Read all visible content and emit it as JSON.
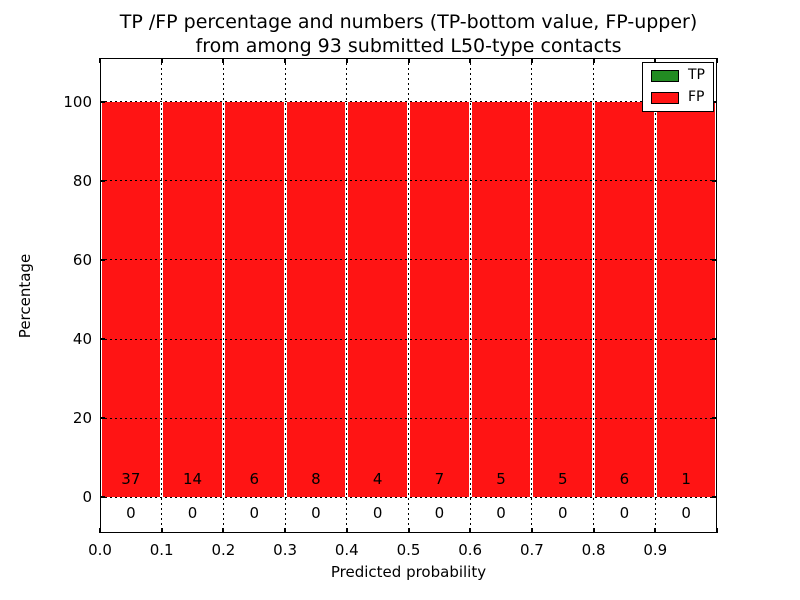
{
  "chart_data": {
    "type": "bar",
    "title_lines": [
      "TP /FP percentage and numbers (TP-bottom value, FP-upper)",
      "from among 93 submitted L50-type contacts"
    ],
    "xlabel": "Predicted probability",
    "ylabel": "Percentage",
    "xlim": [
      0.0,
      1.0
    ],
    "ylim": [
      -9,
      111
    ],
    "x_ticks": [
      {
        "value": 0.0,
        "label": "0.0"
      },
      {
        "value": 0.1,
        "label": "0.1"
      },
      {
        "value": 0.2,
        "label": "0.2"
      },
      {
        "value": 0.3,
        "label": "0.3"
      },
      {
        "value": 0.4,
        "label": "0.4"
      },
      {
        "value": 0.5,
        "label": "0.5"
      },
      {
        "value": 0.6,
        "label": "0.6"
      },
      {
        "value": 0.7,
        "label": "0.7"
      },
      {
        "value": 0.8,
        "label": "0.8"
      },
      {
        "value": 0.9,
        "label": "0.9"
      },
      {
        "value": 1.0,
        "label": ""
      }
    ],
    "y_ticks": [
      {
        "value": 0,
        "label": "0"
      },
      {
        "value": 20,
        "label": "20"
      },
      {
        "value": 40,
        "label": "40"
      },
      {
        "value": 60,
        "label": "60"
      },
      {
        "value": 80,
        "label": "80"
      },
      {
        "value": 100,
        "label": "100"
      }
    ],
    "grid": {
      "linestyle": "dotted",
      "color": "#000000",
      "x_values": [
        0.1,
        0.2,
        0.3,
        0.4,
        0.5,
        0.6,
        0.7,
        0.8,
        0.9
      ],
      "y_values": [
        0,
        20,
        40,
        60,
        80,
        100
      ]
    },
    "bin_edges": [
      0.0,
      0.1,
      0.2,
      0.3,
      0.4,
      0.5,
      0.6,
      0.7,
      0.8,
      0.9,
      1.0
    ],
    "series": [
      {
        "name": "TP",
        "color": "#228b22",
        "percent": [
          0,
          0,
          0,
          0,
          0,
          0,
          0,
          0,
          0,
          0
        ],
        "counts": [
          0,
          0,
          0,
          0,
          0,
          0,
          0,
          0,
          0,
          0
        ],
        "count_label_y": -4
      },
      {
        "name": "FP",
        "color": "#ff1414",
        "percent": [
          100,
          100,
          100,
          100,
          100,
          100,
          100,
          100,
          100,
          100
        ],
        "counts": [
          37,
          14,
          6,
          8,
          4,
          7,
          5,
          5,
          6,
          1
        ],
        "count_label_y": 4.7
      }
    ],
    "legend": {
      "position": "upper right",
      "entries": [
        {
          "label": "TP",
          "color": "#228b22"
        },
        {
          "label": "FP",
          "color": "#ff1414"
        }
      ]
    }
  }
}
